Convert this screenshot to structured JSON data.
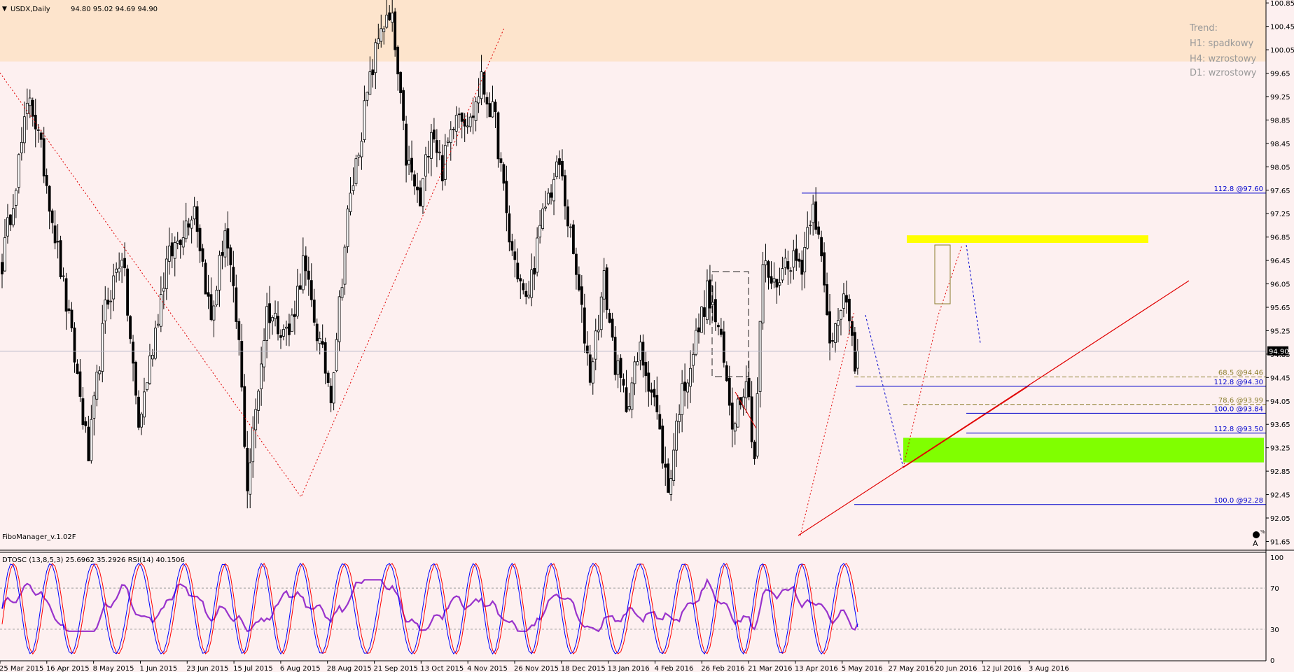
{
  "header": {
    "symbol_label": "USDX,Daily",
    "ohlc": "94.80 95.02 94.69 94.90"
  },
  "trend_panel": {
    "title": "Trend:",
    "h1": "H1: spadkowy",
    "h4": "H4: wzrostowy",
    "d1": "D1: wzrostowy"
  },
  "indicator_label": "FiboManager_v.1.02F",
  "osc_header": "DTOSC (13,8,5,3) 25.6962 35.2926  RSI(14) 40.1506",
  "colors": {
    "background": "#fdf0f0",
    "zone_top": "#fde4cc",
    "zone_yellow": "#ffff00",
    "zone_green": "#80ff00",
    "fib_blue": "#0000cc",
    "fib_olive": "#8b7d2c",
    "trend_red": "#e00000",
    "osc_red": "#ff0000",
    "osc_blue": "#0000ff",
    "rsi_purple": "#9933cc"
  },
  "chart_data": {
    "type": "candlestick",
    "price_axis": {
      "ylim": [
        91.5,
        100.9
      ],
      "ticks": [
        "100.85",
        "100.45",
        "100.05",
        "99.65",
        "99.25",
        "98.85",
        "98.45",
        "98.05",
        "97.65",
        "97.25",
        "96.85",
        "96.45",
        "96.05",
        "95.65",
        "95.25",
        "94.85",
        "94.45",
        "94.05",
        "93.65",
        "93.25",
        "92.85",
        "92.45",
        "92.05",
        "91.65"
      ],
      "current_price": "94.90",
      "current_value": 94.9
    },
    "date_labels": [
      "25 Mar 2015",
      "16 Apr 2015",
      "8 May 2015",
      "1 Jun 2015",
      "23 Jun 2015",
      "15 Jul 2015",
      "6 Aug 2015",
      "28 Aug 2015",
      "21 Sep 2015",
      "13 Oct 2015",
      "4 Nov 2015",
      "26 Nov 2015",
      "18 Dec 2015",
      "13 Jan 2016",
      "4 Feb 2016",
      "26 Feb 2016",
      "21 Mar 2016",
      "13 Apr 2016",
      "5 May 2016",
      "27 May 2016",
      "20 Jun 2016",
      "12 Jul 2016",
      "3 Aug 2016"
    ],
    "anchors": [
      [
        0,
        96.4
      ],
      [
        10,
        99.3
      ],
      [
        16,
        97.8
      ],
      [
        26,
        94.8
      ],
      [
        31,
        93.1
      ],
      [
        37,
        95.6
      ],
      [
        43,
        96.6
      ],
      [
        49,
        93.6
      ],
      [
        59,
        96.4
      ],
      [
        69,
        97.4
      ],
      [
        75,
        95.4
      ],
      [
        80,
        97.0
      ],
      [
        85,
        95.0
      ],
      [
        88,
        92.6
      ],
      [
        95,
        95.6
      ],
      [
        103,
        95.2
      ],
      [
        108,
        96.4
      ],
      [
        114,
        95.0
      ],
      [
        118,
        94.2
      ],
      [
        124,
        97.2
      ],
      [
        130,
        99.0
      ],
      [
        136,
        100.5
      ],
      [
        140,
        100.5
      ],
      [
        145,
        98.2
      ],
      [
        150,
        97.4
      ],
      [
        154,
        98.8
      ],
      [
        158,
        98.0
      ],
      [
        163,
        99.1
      ],
      [
        168,
        98.8
      ],
      [
        172,
        99.5
      ],
      [
        177,
        98.8
      ],
      [
        182,
        96.8
      ],
      [
        188,
        95.7
      ],
      [
        195,
        97.4
      ],
      [
        200,
        98.1
      ],
      [
        206,
        96.2
      ],
      [
        211,
        94.5
      ],
      [
        216,
        96.1
      ],
      [
        220,
        94.7
      ],
      [
        224,
        94.0
      ],
      [
        229,
        94.9
      ],
      [
        234,
        94.1
      ],
      [
        239,
        92.5
      ],
      [
        243,
        94.0
      ],
      [
        248,
        94.9
      ],
      [
        253,
        95.9
      ],
      [
        257,
        95.3
      ],
      [
        262,
        93.7
      ],
      [
        267,
        94.5
      ],
      [
        270,
        93.1
      ],
      [
        273,
        96.4
      ],
      [
        277,
        96.0
      ],
      [
        282,
        96.5
      ],
      [
        287,
        96.4
      ],
      [
        291,
        97.55
      ],
      [
        294,
        96.4
      ],
      [
        297,
        95.0
      ],
      [
        302,
        96.0
      ],
      [
        306,
        94.6
      ],
      [
        307,
        94.9
      ]
    ],
    "bar_count": 308,
    "fib_levels": [
      {
        "label": "112.8   @97.60",
        "value": 97.6,
        "color": "blue"
      },
      {
        "label": "68.5   @94.46",
        "value": 94.46,
        "color": "olive"
      },
      {
        "label": "112.8   @94.30",
        "value": 94.3,
        "color": "blue"
      },
      {
        "label": "78.6   @93.99",
        "value": 93.99,
        "color": "olive"
      },
      {
        "label": "100.0   @93.84",
        "value": 93.84,
        "color": "blue"
      },
      {
        "label": "112.8   @93.50",
        "value": 93.5,
        "color": "blue"
      },
      {
        "label": "100.0   @92.28",
        "value": 92.28,
        "color": "blue"
      }
    ],
    "zones": {
      "resistance_top": [
        99.85,
        100.9
      ],
      "yellow": [
        96.75,
        96.88
      ],
      "green": [
        93.0,
        93.42
      ]
    },
    "oscillator": {
      "ylim": [
        0,
        100
      ],
      "ticks": [
        "100",
        "70",
        "30",
        "0"
      ],
      "levels": [
        70,
        30
      ]
    }
  }
}
